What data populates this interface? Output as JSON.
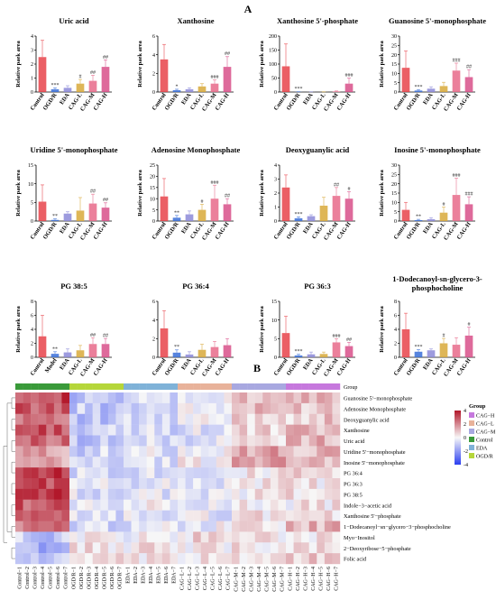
{
  "panel_labels": {
    "a": "A",
    "b": "B"
  },
  "chart_data": [
    {
      "type": "bar",
      "title": "Uric acid",
      "ylabel": "Relative paek area",
      "categories": [
        "Control",
        "OGD/R",
        "EDA",
        "CAG-L",
        "CAG-M",
        "CAG-H"
      ],
      "values": [
        2.5,
        0.2,
        0.3,
        0.6,
        0.8,
        1.8
      ],
      "errors": [
        1.2,
        0.1,
        0.15,
        0.3,
        0.4,
        0.5
      ],
      "significance": [
        "",
        "***",
        "",
        "#",
        "##",
        "##"
      ],
      "ylim": [
        0,
        4
      ],
      "yticks": [
        0,
        1,
        2,
        3,
        4
      ]
    },
    {
      "type": "bar",
      "title": "Xanthosine",
      "ylabel": "Relative paek area",
      "categories": [
        "Control",
        "OGD/R",
        "EDA",
        "CAG-L",
        "CAG-M",
        "CAG-H"
      ],
      "values": [
        3.5,
        0.2,
        0.3,
        0.6,
        0.9,
        2.7
      ],
      "errors": [
        1.6,
        0.1,
        0.15,
        0.3,
        0.4,
        1.1
      ],
      "significance": [
        "",
        "*",
        "",
        "",
        "###",
        "##"
      ],
      "ylim": [
        0,
        6
      ],
      "yticks": [
        0,
        2,
        4,
        6
      ]
    },
    {
      "type": "bar",
      "title": "Xanthosine 5'-phosphate",
      "ylabel": "Relative paek area",
      "categories": [
        "Control",
        "OGD/R",
        "EDA",
        "CAG-L",
        "CAG-M",
        "CAG-H"
      ],
      "values": [
        92,
        0.5,
        0.3,
        0.3,
        2,
        30
      ],
      "errors": [
        80,
        0.5,
        0.3,
        0.3,
        2,
        20
      ],
      "significance": [
        "",
        "***",
        "",
        "",
        "",
        "###"
      ],
      "ylim": [
        0,
        200
      ],
      "yticks": [
        0,
        50,
        100,
        150,
        200
      ]
    },
    {
      "type": "bar",
      "title": "Guanosine 5'-monophosphate",
      "ylabel": "Relative paek area",
      "categories": [
        "Control",
        "OGD/R",
        "EDA",
        "CAG-L",
        "CAG-M",
        "CAG-H"
      ],
      "values": [
        13,
        0.8,
        1.8,
        3.2,
        11.5,
        8
      ],
      "errors": [
        9,
        0.5,
        1,
        2,
        4,
        4
      ],
      "significance": [
        "",
        "***",
        "",
        "",
        "###",
        "##"
      ],
      "ylim": [
        0,
        30
      ],
      "yticks": [
        0,
        5,
        10,
        15,
        20,
        25,
        30
      ]
    },
    {
      "type": "bar",
      "title": "Uridine 5'-monophosphate",
      "ylabel": "Relative paek area",
      "categories": [
        "Control",
        "OGD/R",
        "EDA",
        "CAG-L",
        "CAG-M",
        "CAG-H"
      ],
      "values": [
        5.2,
        0.3,
        2.0,
        2.8,
        4.7,
        3.6
      ],
      "errors": [
        4.5,
        0.3,
        0.5,
        3.5,
        2.5,
        1.3
      ],
      "significance": [
        "",
        "**",
        "",
        "",
        "##",
        "##"
      ],
      "ylim": [
        0,
        15
      ],
      "yticks": [
        0,
        5,
        10,
        15
      ]
    },
    {
      "type": "bar",
      "title": "Adenosine Monophosphate",
      "ylabel": "Relative paek area",
      "categories": [
        "Control",
        "OGD/R",
        "EDA",
        "CAG-L",
        "CAG-M",
        "CAG-H"
      ],
      "values": [
        11,
        1.5,
        3,
        5,
        10,
        7.5
      ],
      "errors": [
        8,
        1,
        1.5,
        2.5,
        6,
        2.5
      ],
      "significance": [
        "",
        "**",
        "",
        "#",
        "###",
        "##"
      ],
      "ylim": [
        0,
        25
      ],
      "yticks": [
        0,
        5,
        10,
        15,
        20,
        25
      ]
    },
    {
      "type": "bar",
      "title": "Deoxyguanylic acid",
      "ylabel": "Relative paek area",
      "categories": [
        "Control",
        "OGD/R",
        "EDA",
        "CAG-L",
        "CAG-M",
        "CAG-H"
      ],
      "values": [
        2.4,
        0.2,
        0.35,
        1.1,
        1.8,
        1.6
      ],
      "errors": [
        0.9,
        0.1,
        0.1,
        0.6,
        0.6,
        0.5
      ],
      "significance": [
        "",
        "***",
        "",
        "",
        "##",
        "#"
      ],
      "ylim": [
        0,
        4
      ],
      "yticks": [
        0,
        1,
        2,
        3,
        4
      ]
    },
    {
      "type": "bar",
      "title": "Inosine 5'-monophosphate",
      "ylabel": "Relative paek area",
      "categories": [
        "Control",
        "OGD/R",
        "EDA",
        "CAG-L",
        "CAG-M",
        "CAG-H"
      ],
      "values": [
        6,
        0.5,
        1,
        4.5,
        14,
        9
      ],
      "errors": [
        4,
        0.4,
        0.8,
        3,
        9,
        4
      ],
      "significance": [
        "",
        "**",
        "",
        "#",
        "###",
        "###"
      ],
      "ylim": [
        0,
        30
      ],
      "yticks": [
        0,
        5,
        10,
        15,
        20,
        25,
        30
      ]
    },
    {
      "type": "bar",
      "title": "PG 38:5",
      "ylabel": "Relative paek area",
      "categories": [
        "Control",
        "Model",
        "EDA",
        "CAG-L",
        "CAG-M",
        "CAG-H"
      ],
      "values": [
        3,
        0.5,
        0.7,
        1.0,
        1.9,
        1.9
      ],
      "errors": [
        3,
        0.3,
        0.5,
        0.7,
        0.9,
        0.8
      ],
      "significance": [
        "",
        "**",
        "",
        "",
        "##",
        "##"
      ],
      "ylim": [
        0,
        8
      ],
      "yticks": [
        0,
        2,
        4,
        6,
        8
      ]
    },
    {
      "type": "bar",
      "title": "PG 36:4",
      "ylabel": "",
      "categories": [
        "Control",
        "OGD/R",
        "EDA",
        "CAG-L",
        "CAG-M",
        "CAG-H"
      ],
      "values": [
        3.1,
        0.5,
        0.3,
        0.8,
        1.1,
        1.3
      ],
      "errors": [
        1.9,
        0.3,
        0.3,
        0.6,
        0.6,
        0.7
      ],
      "significance": [
        "",
        "**",
        "",
        "",
        "",
        ""
      ],
      "ylim": [
        0,
        6
      ],
      "yticks": [
        0,
        2,
        4,
        6
      ]
    },
    {
      "type": "bar",
      "title": "PG 36:3",
      "ylabel": "Relative paek area",
      "categories": [
        "Control",
        "OGD/R",
        "EDA",
        "CAG-L",
        "CAG-M",
        "CAG-H"
      ],
      "values": [
        6.5,
        0.5,
        0.8,
        0.9,
        4,
        3
      ],
      "errors": [
        4.5,
        0.3,
        0.6,
        0.5,
        1,
        1
      ],
      "significance": [
        "",
        "***",
        "",
        "",
        "###",
        "##"
      ],
      "ylim": [
        0,
        15
      ],
      "yticks": [
        0,
        5,
        10,
        15
      ]
    },
    {
      "type": "bar",
      "title": "1-Dodecanoyl-sn-glycero-3-phosphocholine",
      "ylabel": "Relative paek area",
      "categories": [
        "Control",
        "OGD/R",
        "EDA",
        "CAG-L",
        "CAG-M",
        "CAG-H"
      ],
      "values": [
        4,
        0.8,
        1.0,
        2.0,
        1.8,
        3.1
      ],
      "errors": [
        2.3,
        0.3,
        0.2,
        0.7,
        1.0,
        1.2
      ],
      "significance": [
        "",
        "***",
        "",
        "#",
        "",
        "#"
      ],
      "ylim": [
        0,
        8
      ],
      "yticks": [
        0,
        2,
        4,
        6,
        8
      ]
    },
    {
      "type": "heatmap",
      "rows": [
        "Guanosine 5'−monophosphate",
        "Adenosine Monophosphate",
        "Deoxyguanylic acid",
        "Xanthosine",
        "Uric acid",
        "Uridine 5'−monophosphate",
        "Inosine 5'−monophosphate",
        "PG 36:4",
        "PG 36:3",
        "PG 38:5",
        "Indole−3−acetic acid",
        "Xanthosine 5'−phosphate",
        "1−Dodecanoyl−sn−glycero−3−phosphocholine",
        "Myo−Inositol",
        "2−Deoxyribose−5−phosphate",
        "Folic acid"
      ],
      "columns": [
        "Control−1",
        "Control−2",
        "Control−3",
        "Control−4",
        "Control−5",
        "Control−6",
        "Control−7",
        "OGD/R−1",
        "OGD/R−2",
        "OGD/R−3",
        "OGD/R−4",
        "OGD/R−5",
        "OGD/R−6",
        "OGD/R−7",
        "EDA−1",
        "EDA−2",
        "EDA−3",
        "EDA−4",
        "EDA−5",
        "EDA−6",
        "EDA−7",
        "CAG−L−1",
        "CAG−L−2",
        "CAG−L−3",
        "CAG−L−4",
        "CAG−L−5",
        "CAG−L−6",
        "CAG−L−7",
        "CAG−M−1",
        "CAG−M−2",
        "CAG−M−3",
        "CAG−M−4",
        "CAG−M−5",
        "CAG−M−6",
        "CAG−M−7",
        "CAG−H−1",
        "CAG−H−2",
        "CAG−H−3",
        "CAG−H−4",
        "CAG−H−5",
        "CAG−H−6",
        "CAG−H−7"
      ],
      "column_groups": [
        "Control",
        "OGD/R",
        "EDA",
        "CAG-L",
        "CAG-M",
        "CAG-H"
      ],
      "scale": {
        "min": -4,
        "max": 4,
        "ticks": [
          4,
          2,
          0,
          -2,
          -4
        ]
      },
      "legend_title": "Group",
      "legend_entries": [
        "CAG−H",
        "CAG−L",
        "CAG−M",
        "Control",
        "EDA",
        "OGD/R"
      ],
      "group_colors": {
        "Control": "#3a9a3a",
        "OGD/R": "#b5d63a",
        "EDA": "#7fb2d8",
        "CAG-L": "#e8b29a",
        "CAG-M": "#a8a8e0",
        "CAG-H": "#c678dd"
      },
      "legend_colors": [
        "#c678dd",
        "#e8b29a",
        "#a8a8e0",
        "#3a9a3a",
        "#7fb2d8",
        "#b5d63a"
      ],
      "color_high": "#b2182b",
      "color_mid": "#f7f7f7",
      "color_low": "#2b3ff0"
    }
  ],
  "colors": {
    "bars": [
      "#e8434a",
      "#3a6fd8",
      "#8c8ad8",
      "#d8a93a",
      "#e86a8a",
      "#d8508a"
    ]
  }
}
